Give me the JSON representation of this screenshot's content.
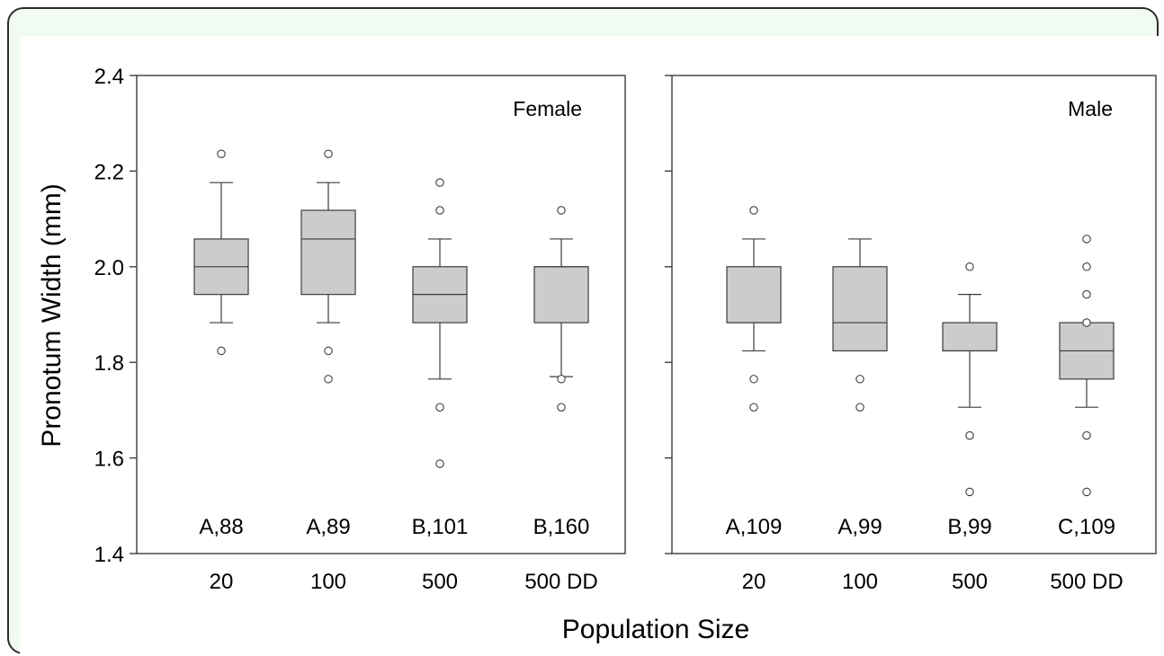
{
  "chart_data": {
    "type": "box",
    "ylabel": "Pronotum Width (mm)",
    "xlabel": "Population Size",
    "ylim": [
      1.4,
      2.4
    ],
    "yticks": [
      "1.4",
      "1.6",
      "1.8",
      "2.0",
      "2.2",
      "2.4"
    ],
    "panels": [
      {
        "label": "Female",
        "categories": [
          "20",
          "100",
          "500",
          "500 DD"
        ],
        "boxes": [
          {
            "q1": 1.942,
            "median": 2.0,
            "q3": 2.058,
            "whisker_low": 1.883,
            "whisker_high": 2.176,
            "outliers": [
              2.236,
              1.824
            ],
            "annotation": "A,88"
          },
          {
            "q1": 1.942,
            "median": 2.058,
            "q3": 2.118,
            "whisker_low": 1.883,
            "whisker_high": 2.176,
            "outliers": [
              2.236,
              1.824,
              1.765
            ],
            "annotation": "A,89"
          },
          {
            "q1": 1.883,
            "median": 1.942,
            "q3": 2.0,
            "whisker_low": 1.765,
            "whisker_high": 2.058,
            "outliers": [
              2.176,
              2.118,
              1.706,
              1.588
            ],
            "annotation": "B,101"
          },
          {
            "q1": 1.883,
            "median": 2.0,
            "q3": 2.0,
            "whisker_low": 1.77,
            "whisker_high": 2.058,
            "outliers": [
              2.118,
              1.765,
              1.706
            ],
            "annotation": "B,160"
          }
        ]
      },
      {
        "label": "Male",
        "categories": [
          "20",
          "100",
          "500",
          "500 DD"
        ],
        "boxes": [
          {
            "q1": 1.883,
            "median": 1.883,
            "q3": 2.0,
            "whisker_low": 1.824,
            "whisker_high": 2.058,
            "outliers": [
              2.118,
              1.765,
              1.706
            ],
            "annotation": "A,109"
          },
          {
            "q1": 1.824,
            "median": 1.883,
            "q3": 2.0,
            "whisker_low": 1.824,
            "whisker_high": 2.058,
            "outliers": [
              1.765,
              1.706
            ],
            "annotation": "A,99"
          },
          {
            "q1": 1.824,
            "median": 1.824,
            "q3": 1.883,
            "whisker_low": 1.706,
            "whisker_high": 1.942,
            "outliers": [
              2.0,
              1.647,
              1.529
            ],
            "annotation": "B,99"
          },
          {
            "q1": 1.765,
            "median": 1.824,
            "q3": 1.883,
            "whisker_low": 1.706,
            "whisker_high": 1.883,
            "outliers": [
              2.058,
              2.0,
              1.942,
              1.883,
              1.647,
              1.529
            ],
            "annotation": "C,109"
          }
        ]
      }
    ],
    "colors": {
      "box_fill": "#cccccc",
      "stroke": "#3c3c3c",
      "frame_bg": "#f1fbf2",
      "frame_border": "#2e2e2e"
    }
  }
}
